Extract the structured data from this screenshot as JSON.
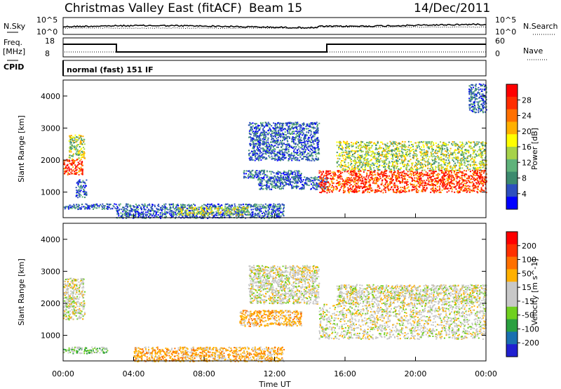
{
  "header": {
    "station": "Christmas Valley East (fitACF)",
    "beam": "Beam 15",
    "date": "14/Dec/2011"
  },
  "noise_panel": {
    "left_label": "N.Sky",
    "right_label": "N.Search",
    "left_ticks": [
      "10^5",
      "10^0"
    ],
    "right_ticks": [
      "10^5",
      "10^0"
    ]
  },
  "freq_panel": {
    "left_label_1": "Freq.",
    "left_label_2": "[MHz]",
    "cpid_label": "CPID",
    "right_label": "Nave",
    "left_ticks": [
      "18",
      "8"
    ],
    "right_ticks": [
      "60",
      "0"
    ],
    "mode_text": "normal (fast) 151 IF"
  },
  "colors": {
    "power_scale": [
      "#0000ff",
      "#2d4fbe",
      "#3c8a6e",
      "#5fb27a",
      "#a6d24a",
      "#ffff00",
      "#ffb000",
      "#ff7000",
      "#ff2d00",
      "#ff0000"
    ],
    "velocity_scale": [
      "#2020d0",
      "#1a70b0",
      "#2aa040",
      "#70d020",
      "#c8c8c8",
      "#c8c8c8",
      "#ffb000",
      "#ff7000",
      "#ff3000",
      "#ff0000"
    ]
  },
  "chart_data": [
    {
      "type": "heatmap",
      "name": "power",
      "xlabel": "",
      "ylabel": "Slant Range [km]",
      "yticks": [
        "1000",
        "2000",
        "3000",
        "4000"
      ],
      "ylim": [
        200,
        4500
      ],
      "xlim": [
        0,
        24
      ],
      "colorbar_label": "Power [dB]",
      "colorbar_ticks": [
        "28",
        "24",
        "20",
        "16",
        "12",
        "8",
        "4"
      ],
      "features": [
        {
          "t0": 0.0,
          "t1": 1.1,
          "r0": 1550,
          "r1": 2050,
          "level": "high"
        },
        {
          "t0": 0.3,
          "t1": 1.2,
          "r0": 2050,
          "r1": 2800,
          "level": "mid"
        },
        {
          "t0": 0.7,
          "t1": 1.3,
          "r0": 850,
          "r1": 1400,
          "level": "low"
        },
        {
          "t0": 0.0,
          "t1": 3.0,
          "r0": 480,
          "r1": 650,
          "level": "low"
        },
        {
          "t0": 3.0,
          "t1": 12.5,
          "r0": 200,
          "r1": 650,
          "level": "low"
        },
        {
          "t0": 6.5,
          "t1": 10.5,
          "r0": 300,
          "r1": 550,
          "level": "mid"
        },
        {
          "t0": 10.2,
          "t1": 13.5,
          "r0": 1450,
          "r1": 1700,
          "level": "low"
        },
        {
          "t0": 11.0,
          "t1": 15.0,
          "r0": 1100,
          "r1": 1500,
          "level": "low"
        },
        {
          "t0": 14.5,
          "t1": 24.0,
          "r0": 1000,
          "r1": 1700,
          "level": "high"
        },
        {
          "t0": 15.5,
          "t1": 24.0,
          "r0": 1700,
          "r1": 2600,
          "level": "mid"
        },
        {
          "t0": 10.5,
          "t1": 14.5,
          "r0": 2000,
          "r1": 3200,
          "level": "low"
        },
        {
          "t0": 23.0,
          "t1": 24.0,
          "r0": 3500,
          "r1": 4400,
          "level": "low"
        }
      ]
    },
    {
      "type": "heatmap",
      "name": "velocity",
      "xlabel": "Time UT",
      "ylabel": "Slant Range [km]",
      "xticks": [
        "00:00",
        "04:00",
        "08:00",
        "12:00",
        "16:00",
        "20:00",
        "00:00"
      ],
      "yticks": [
        "1000",
        "2000",
        "3000",
        "4000"
      ],
      "ylim": [
        200,
        4500
      ],
      "xlim": [
        0,
        24
      ],
      "colorbar_label": "Velocity [m s^-1]",
      "colorbar_ticks": [
        "200",
        "100",
        "50",
        "15",
        "-15",
        "-50",
        "-100",
        "-200"
      ],
      "features": [
        {
          "t0": 0.0,
          "t1": 1.2,
          "r0": 1500,
          "r1": 2800,
          "level": "gray"
        },
        {
          "t0": 0.0,
          "t1": 2.5,
          "r0": 450,
          "r1": 650,
          "level": "green"
        },
        {
          "t0": 4.0,
          "t1": 12.5,
          "r0": 200,
          "r1": 650,
          "level": "orange"
        },
        {
          "t0": 10.0,
          "t1": 13.5,
          "r0": 1300,
          "r1": 1800,
          "level": "orange"
        },
        {
          "t0": 10.5,
          "t1": 14.5,
          "r0": 2000,
          "r1": 3200,
          "level": "gray"
        },
        {
          "t0": 14.5,
          "t1": 24.0,
          "r0": 900,
          "r1": 2000,
          "level": "gray"
        },
        {
          "t0": 15.5,
          "t1": 24.0,
          "r0": 2000,
          "r1": 2600,
          "level": "gray"
        }
      ]
    }
  ]
}
